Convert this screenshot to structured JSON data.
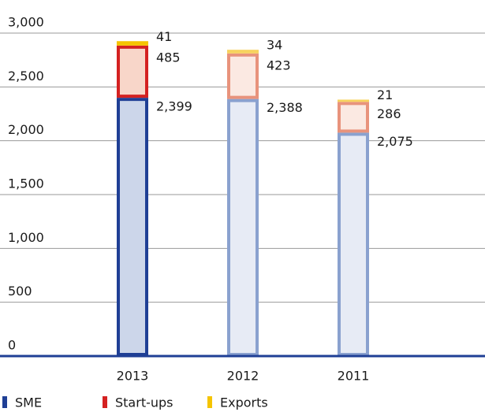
{
  "chart_data": {
    "type": "stacked_bar",
    "categories": [
      "2013",
      "2012",
      "2011"
    ],
    "series": [
      {
        "name": "SME",
        "color": "#1f3f95",
        "values": [
          2399,
          2388,
          2075
        ],
        "value_labels": [
          "2,399",
          "2,388",
          "2,075"
        ],
        "bar_colors": [
          "#1f3f95",
          "#8aa1cf",
          "#8aa1cf"
        ],
        "bar_fills": [
          "#ccd6ea",
          "#e7ebf5",
          "#e7ebf5"
        ]
      },
      {
        "name": "Start-ups",
        "color": "#d42121",
        "values": [
          485,
          423,
          286
        ],
        "bar_colors": [
          "#d42121",
          "#e8937c",
          "#e8937c"
        ],
        "bar_fills": [
          "#f8d6c9",
          "#fbe9e2",
          "#fbe9e2"
        ]
      },
      {
        "name": "Exports",
        "color": "#f5c400",
        "values": [
          41,
          34,
          21
        ],
        "bar_colors": [
          "#f5c400",
          "#f7d25e",
          "#f7d25e"
        ],
        "bar_fills": [
          "#f5c400",
          "#f7d25e",
          "#f7d25e"
        ]
      }
    ],
    "ylim": [
      0,
      3000
    ],
    "yticks": [
      0,
      500,
      {
        "value": 1000,
        "label": "1,000"
      },
      {
        "value": 1500,
        "label": "1,500"
      },
      {
        "value": 2000,
        "label": "2,000"
      },
      {
        "value": 2500,
        "label": "2,500"
      },
      {
        "value": 3000,
        "label": "3,000"
      }
    ],
    "grid": true
  }
}
